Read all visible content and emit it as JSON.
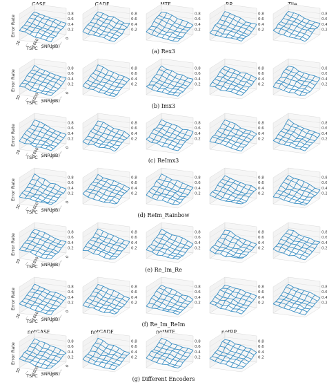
{
  "chart_data": {
    "type": "surface3d",
    "panel_titles": [
      "GASF",
      "GADF",
      "MTF",
      "RP",
      "Tile"
    ],
    "bottom_titles": [
      "notGASF",
      "notGADF",
      "notMTF",
      "notRP"
    ],
    "zlabel": "Error Rate",
    "xlabel": "TSPC",
    "ylabel": "SNR(dB)",
    "z_ticks": [
      "0.2",
      "0.4",
      "0.6",
      "0.8"
    ],
    "x_ticks": [
      "50",
      "...",
      "1600",
      "..."
    ],
    "y_ticks": [
      "21",
      "...",
      "0"
    ],
    "rows": [
      {
        "caption": "(a) Rex3"
      },
      {
        "caption": "(b) Imx3"
      },
      {
        "caption": "(c) ReImx3"
      },
      {
        "caption": "(d) ReIm_Rainbow"
      },
      {
        "caption": "(e) Re_Im_Re"
      },
      {
        "caption": "(f) Re_Im_ReIm"
      },
      {
        "caption": "(g) Different Encoders"
      }
    ],
    "surface_style": {
      "color": "#3a8fc4"
    }
  }
}
